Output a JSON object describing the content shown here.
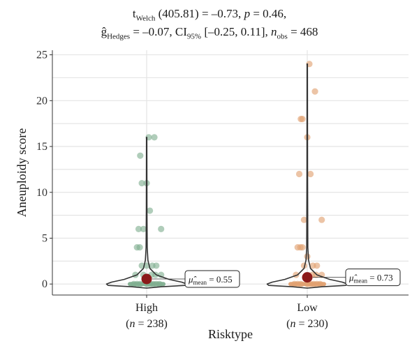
{
  "subtitle": {
    "line1": {
      "t_symbol": "t",
      "t_sub": "Welch",
      "df": "(405.81)",
      "statistic": " = –0.73, ",
      "p_symbol": "p",
      "p_value": " = 0.46,"
    },
    "line2": {
      "g_symbol": "ĝ",
      "g_sub": "Hedges",
      "g_value": " = –0.07, ",
      "ci_symbol": "CI",
      "ci_sub": "95%",
      "ci_value": " [–0.25, 0.11], ",
      "n_symbol": "n",
      "n_sub": "obs",
      "n_value": " = 468"
    }
  },
  "chart_data": {
    "type": "violin-scatter",
    "xlabel": "Risktype",
    "ylabel": "Aneuploidy score",
    "ylim": [
      -1.2,
      25.5
    ],
    "yticks": [
      0,
      5,
      10,
      15,
      20,
      25
    ],
    "grid": true,
    "groups": [
      {
        "category": "High",
        "n_label": "(n = 238)",
        "n_prefix": "(",
        "n_symbol": "n",
        "n_suffix": " = 238)",
        "color": "#7fae8f",
        "mean": 0.55,
        "mean_label_prefix": "μ̂",
        "mean_label_sub": "mean",
        "mean_label_value": " = 0.55",
        "max": 16,
        "points": [
          16,
          16,
          14,
          11,
          11,
          8,
          6,
          6,
          6,
          4,
          4,
          2,
          2,
          2,
          2,
          1,
          1,
          1,
          1,
          1,
          0,
          0,
          0,
          0,
          0,
          0,
          0,
          0
        ]
      },
      {
        "category": "Low",
        "n_label": "(n = 230)",
        "n_prefix": "(",
        "n_symbol": "n",
        "n_suffix": " = 230)",
        "color": "#e0a070",
        "mean": 0.73,
        "mean_label_prefix": "μ̂",
        "mean_label_sub": "mean",
        "mean_label_value": " = 0.73",
        "max": 24,
        "points": [
          24,
          21,
          18,
          18,
          16,
          12,
          12,
          7,
          7,
          4,
          4,
          4,
          3,
          2,
          2,
          2,
          1,
          1,
          1,
          1,
          0,
          0,
          0,
          0,
          0,
          0,
          0,
          0
        ]
      }
    ],
    "mean_color": "#8b1a1a",
    "violin_color": "#333333"
  }
}
